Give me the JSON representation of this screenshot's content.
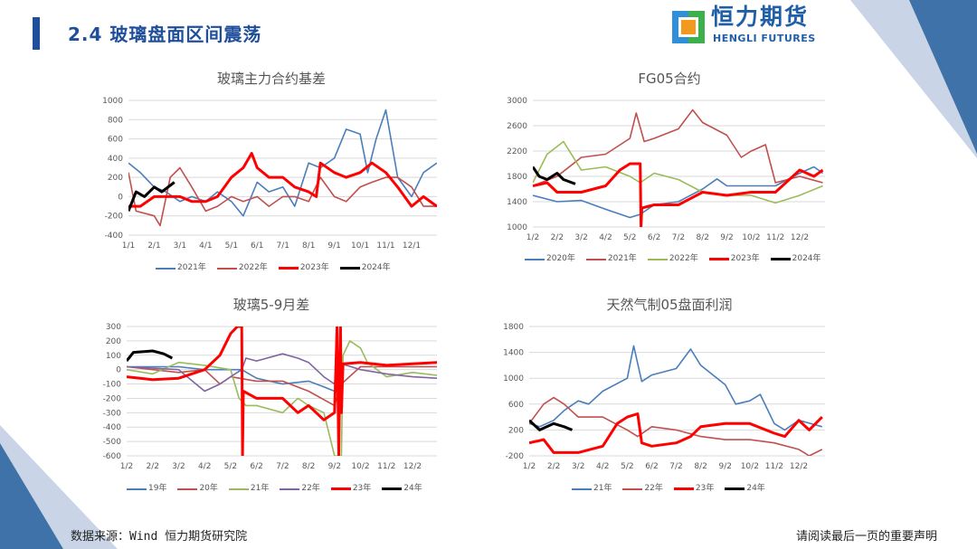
{
  "header": {
    "title": "2.4 玻璃盘面区间震荡"
  },
  "logo": {
    "cn": "恒力期货",
    "en": "HENGLI FUTURES"
  },
  "footer": {
    "source": "数据来源：Wind  恒力期货研究院",
    "note": "请阅读最后一页的重要声明"
  },
  "colors": {
    "brand_blue": "#1f4e9a",
    "blue": "#4a7ebb",
    "brick": "#c0504d",
    "green": "#9bbb59",
    "purple": "#8064a2",
    "red": "#ff0000",
    "black": "#000000"
  },
  "chart_data": [
    {
      "type": "line",
      "title": "玻璃主力合约基差",
      "ylim": [
        -400,
        1000
      ],
      "yticks": [
        -400,
        -200,
        0,
        200,
        400,
        600,
        800,
        1000
      ],
      "xticks": [
        "1/1",
        "2/1",
        "3/1",
        "4/1",
        "5/1",
        "6/1",
        "7/1",
        "8/1",
        "9/1",
        "10/1",
        "11/1",
        "12/1"
      ],
      "grid": true,
      "legend": "bottom",
      "series": [
        {
          "name": "2021年",
          "color": "#4a7ebb",
          "x": [
            "1/1",
            "1/15",
            "2/1",
            "2/15",
            "3/1",
            "3/15",
            "4/1",
            "4/15",
            "5/1",
            "5/15",
            "6/1",
            "6/15",
            "7/1",
            "7/15",
            "8/1",
            "8/15",
            "9/1",
            "9/15",
            "10/1",
            "10/10",
            "10/20",
            "11/1",
            "11/15",
            "12/1",
            "12/15",
            "12/31"
          ],
          "y": [
            350,
            250,
            100,
            50,
            -50,
            0,
            -50,
            50,
            -50,
            -200,
            150,
            50,
            100,
            -100,
            350,
            300,
            400,
            700,
            650,
            250,
            600,
            900,
            200,
            0,
            250,
            350
          ]
        },
        {
          "name": "2022年",
          "color": "#c0504d",
          "x": [
            "1/1",
            "1/10",
            "2/1",
            "2/8",
            "2/20",
            "3/1",
            "3/15",
            "4/1",
            "4/15",
            "5/1",
            "5/15",
            "6/1",
            "6/15",
            "7/1",
            "7/15",
            "8/1",
            "8/15",
            "9/1",
            "9/15",
            "10/1",
            "10/15",
            "11/1",
            "11/15",
            "12/1",
            "12/15",
            "12/31"
          ],
          "y": [
            250,
            -150,
            -200,
            -300,
            200,
            300,
            100,
            -150,
            -100,
            0,
            -50,
            0,
            -100,
            0,
            0,
            -50,
            200,
            0,
            -50,
            100,
            150,
            200,
            200,
            100,
            -100,
            -100
          ]
        },
        {
          "name": "2023年",
          "color": "#ff0000",
          "x": [
            "1/1",
            "1/15",
            "2/1",
            "3/1",
            "3/15",
            "4/1",
            "4/15",
            "5/1",
            "5/15",
            "5/25",
            "6/1",
            "6/15",
            "7/1",
            "7/15",
            "8/1",
            "8/10",
            "8/15",
            "9/1",
            "9/15",
            "10/1",
            "10/15",
            "11/1",
            "11/15",
            "12/1",
            "12/15",
            "12/31"
          ],
          "y": [
            -100,
            -100,
            0,
            0,
            -50,
            -50,
            0,
            200,
            300,
            450,
            300,
            200,
            200,
            100,
            50,
            0,
            350,
            250,
            200,
            250,
            350,
            250,
            100,
            -100,
            0,
            -100
          ]
        },
        {
          "name": "2024年",
          "color": "#000000",
          "x": [
            "1/1",
            "1/10",
            "1/20",
            "2/1",
            "2/10",
            "2/25"
          ],
          "y": [
            -150,
            50,
            0,
            100,
            50,
            150
          ]
        }
      ]
    },
    {
      "type": "line",
      "title": "FG05合约",
      "ylim": [
        1000,
        3000
      ],
      "yticks": [
        1000,
        1400,
        1800,
        2200,
        2600,
        3000
      ],
      "xticks": [
        "1/2",
        "2/2",
        "3/2",
        "4/2",
        "5/2",
        "6/2",
        "7/2",
        "8/2",
        "9/2",
        "10/2",
        "11/2",
        "12/2"
      ],
      "grid": true,
      "legend": "bottom",
      "series": [
        {
          "name": "2020年",
          "color": "#4a7ebb",
          "x": [
            "1/2",
            "2/2",
            "3/2",
            "4/2",
            "5/2",
            "5/15",
            "6/2",
            "7/2",
            "8/2",
            "8/20",
            "9/2",
            "10/2",
            "11/2",
            "12/2",
            "12/20",
            "12/31"
          ],
          "y": [
            1500,
            1400,
            1420,
            1280,
            1150,
            1200,
            1350,
            1400,
            1600,
            1760,
            1650,
            1650,
            1650,
            1850,
            1950,
            1850
          ]
        },
        {
          "name": "2021年",
          "color": "#c0504d",
          "x": [
            "1/2",
            "2/2",
            "3/2",
            "4/2",
            "5/2",
            "5/10",
            "5/20",
            "6/2",
            "7/2",
            "7/20",
            "8/2",
            "9/2",
            "9/20",
            "10/2",
            "10/20",
            "11/2",
            "12/2",
            "12/31"
          ],
          "y": [
            1650,
            1800,
            2100,
            2150,
            2400,
            2800,
            2350,
            2400,
            2550,
            2850,
            2650,
            2450,
            2100,
            2200,
            2300,
            1700,
            1800,
            1700
          ]
        },
        {
          "name": "2022年",
          "color": "#9bbb59",
          "x": [
            "1/2",
            "1/20",
            "2/10",
            "3/2",
            "4/2",
            "5/2",
            "5/15",
            "6/2",
            "7/2",
            "8/2",
            "9/2",
            "10/2",
            "11/2",
            "12/2",
            "12/31"
          ],
          "y": [
            1700,
            2150,
            2350,
            1900,
            1950,
            1800,
            1700,
            1850,
            1750,
            1550,
            1500,
            1500,
            1380,
            1500,
            1650
          ]
        },
        {
          "name": "2023年",
          "color": "#ff0000",
          "x": [
            "1/2",
            "1/20",
            "2/2",
            "3/2",
            "4/2",
            "4/20",
            "5/2",
            "5/15",
            "5/16",
            "5/17",
            "6/2",
            "7/2",
            "8/2",
            "9/2",
            "10/2",
            "11/2",
            "12/2",
            "12/20",
            "12/31"
          ],
          "y": [
            1650,
            1700,
            1550,
            1550,
            1650,
            1900,
            2000,
            2000,
            1000,
            1300,
            1350,
            1350,
            1550,
            1500,
            1550,
            1550,
            1900,
            1800,
            1900
          ]
        },
        {
          "name": "2024年",
          "color": "#000000",
          "x": [
            "1/2",
            "1/10",
            "1/20",
            "2/2",
            "2/10",
            "2/25"
          ],
          "y": [
            1950,
            1800,
            1750,
            1850,
            1750,
            1680
          ]
        }
      ]
    },
    {
      "type": "line",
      "title": "玻璃5-9月差",
      "ylim": [
        -600,
        300
      ],
      "yticks": [
        -600,
        -500,
        -400,
        -300,
        -200,
        -100,
        0,
        100,
        200,
        300
      ],
      "xticks": [
        "1/2",
        "2/2",
        "3/2",
        "4/2",
        "5/2",
        "6/2",
        "7/2",
        "8/2",
        "9/2",
        "10/2",
        "11/2",
        "12/2"
      ],
      "grid": true,
      "legend": "bottom",
      "series": [
        {
          "name": "19年",
          "color": "#4a7ebb",
          "x": [
            "1/2",
            "3/2",
            "4/2",
            "5/2",
            "5/15",
            "6/2",
            "7/2",
            "8/2",
            "8/20",
            "9/2",
            "9/10"
          ],
          "y": [
            20,
            20,
            0,
            0,
            0,
            -60,
            -100,
            -80,
            -120,
            -150,
            -140
          ]
        },
        {
          "name": "20年",
          "color": "#c0504d",
          "x": [
            "1/2",
            "3/2",
            "4/2",
            "4/20",
            "5/2",
            "6/2",
            "7/2",
            "8/2",
            "9/2",
            "9/10",
            "10/2",
            "12/31"
          ],
          "y": [
            20,
            -20,
            0,
            -100,
            -50,
            -80,
            -80,
            -150,
            -250,
            -100,
            20,
            20
          ]
        },
        {
          "name": "21年",
          "color": "#9bbb59",
          "x": [
            "1/2",
            "2/2",
            "3/2",
            "4/2",
            "5/2",
            "5/12",
            "5/20",
            "6/2",
            "7/2",
            "7/20",
            "8/2",
            "8/20",
            "9/2",
            "9/10",
            "9/12",
            "9/20",
            "10/2",
            "10/10",
            "11/2",
            "12/2",
            "12/31"
          ],
          "y": [
            0,
            -30,
            50,
            30,
            0,
            -200,
            -250,
            -250,
            -300,
            -200,
            -250,
            -300,
            -600,
            -600,
            100,
            200,
            150,
            50,
            -50,
            -20,
            -40
          ]
        },
        {
          "name": "22年",
          "color": "#8064a2",
          "x": [
            "1/2",
            "3/2",
            "4/2",
            "4/20",
            "5/2",
            "5/15",
            "5/20",
            "6/2",
            "7/2",
            "7/20",
            "8/2",
            "8/20",
            "9/2",
            "9/5",
            "10/2",
            "11/2",
            "12/2",
            "12/31"
          ],
          "y": [
            20,
            0,
            -150,
            -100,
            -50,
            0,
            80,
            60,
            110,
            80,
            50,
            -50,
            -100,
            50,
            0,
            -30,
            -50,
            -60
          ]
        },
        {
          "name": "23年",
          "color": "#ff0000",
          "x": [
            "1/2",
            "2/2",
            "3/2",
            "4/2",
            "4/20",
            "5/2",
            "5/10",
            "5/15",
            "5/16",
            "5/17",
            "6/2",
            "7/2",
            "7/20",
            "8/2",
            "8/20",
            "9/2",
            "9/5",
            "9/7",
            "9/9",
            "9/10",
            "9/12",
            "10/2",
            "11/2",
            "12/2",
            "12/31"
          ],
          "y": [
            -50,
            -70,
            -60,
            0,
            100,
            250,
            300,
            300,
            -600,
            -150,
            -200,
            -200,
            -300,
            -250,
            -350,
            -300,
            300,
            -600,
            300,
            -300,
            40,
            50,
            30,
            40,
            50
          ]
        },
        {
          "name": "24年",
          "color": "#000000",
          "x": [
            "1/2",
            "1/10",
            "2/2",
            "2/15",
            "2/25"
          ],
          "y": [
            60,
            120,
            130,
            110,
            80
          ]
        }
      ]
    },
    {
      "type": "line",
      "title": "天然气制05盘面利润",
      "ylim": [
        -200,
        1800
      ],
      "yticks": [
        -200,
        200,
        600,
        1000,
        1400,
        1800
      ],
      "xticks": [
        "1/2",
        "2/2",
        "3/2",
        "4/2",
        "5/2",
        "6/2",
        "7/2",
        "8/2",
        "9/2",
        "10/2",
        "11/2",
        "12/2"
      ],
      "grid": true,
      "legend": "bottom",
      "series": [
        {
          "name": "21年",
          "color": "#4a7ebb",
          "x": [
            "1/2",
            "1/15",
            "2/2",
            "2/15",
            "3/2",
            "3/15",
            "4/2",
            "5/2",
            "5/10",
            "5/20",
            "6/2",
            "7/2",
            "7/20",
            "8/2",
            "9/2",
            "9/15",
            "10/2",
            "10/15",
            "11/2",
            "11/15",
            "12/2",
            "12/31"
          ],
          "y": [
            300,
            250,
            350,
            500,
            650,
            600,
            800,
            1000,
            1500,
            950,
            1050,
            1150,
            1450,
            1200,
            900,
            600,
            650,
            750,
            300,
            200,
            350,
            250
          ]
        },
        {
          "name": "22年",
          "color": "#c0504d",
          "x": [
            "1/2",
            "1/20",
            "2/2",
            "2/15",
            "3/2",
            "4/2",
            "5/2",
            "5/15",
            "6/2",
            "7/2",
            "8/2",
            "9/2",
            "10/2",
            "11/2",
            "12/2",
            "12/15",
            "12/31"
          ],
          "y": [
            300,
            600,
            700,
            600,
            400,
            400,
            200,
            100,
            250,
            200,
            100,
            50,
            50,
            0,
            -100,
            -200,
            -100
          ]
        },
        {
          "name": "23年",
          "color": "#ff0000",
          "x": [
            "1/2",
            "1/20",
            "2/2",
            "3/2",
            "4/2",
            "4/20",
            "5/2",
            "5/15",
            "5/20",
            "6/2",
            "7/2",
            "7/20",
            "8/2",
            "9/2",
            "10/2",
            "11/2",
            "11/15",
            "12/2",
            "12/15",
            "12/31"
          ],
          "y": [
            0,
            50,
            -150,
            -150,
            -50,
            300,
            400,
            450,
            0,
            -50,
            0,
            100,
            250,
            300,
            300,
            150,
            100,
            350,
            200,
            400
          ]
        },
        {
          "name": "24年",
          "color": "#000000",
          "x": [
            "1/2",
            "1/15",
            "2/2",
            "2/15",
            "2/25"
          ],
          "y": [
            350,
            200,
            300,
            250,
            200
          ]
        }
      ]
    }
  ]
}
